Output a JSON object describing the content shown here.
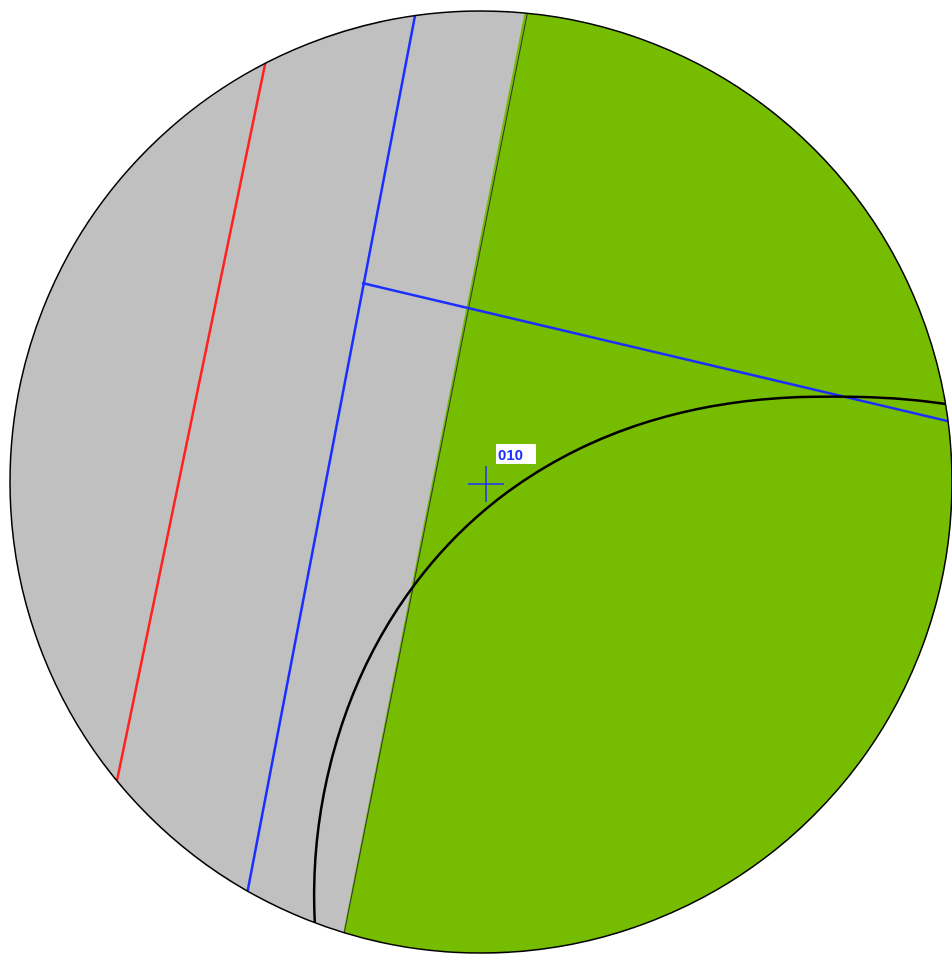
{
  "pole": {
    "label": "010"
  }
}
